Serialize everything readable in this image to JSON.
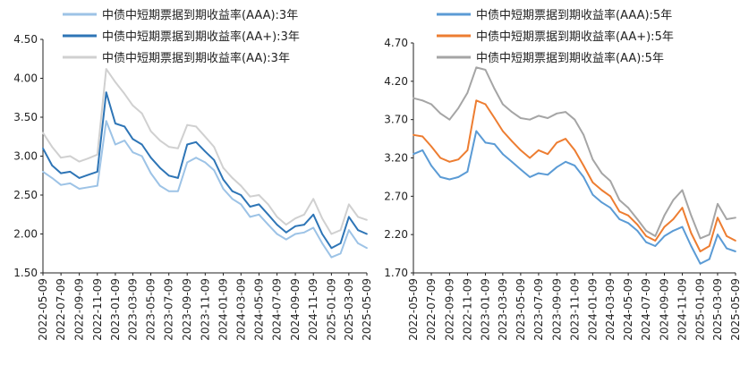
{
  "chart_data": [
    {
      "type": "line",
      "title": "",
      "xlabel": "",
      "ylabel": "",
      "ylim": [
        1.5,
        4.5
      ],
      "y_ticks": [
        "4.50",
        "4.00",
        "3.50",
        "3.00",
        "2.50",
        "2.00",
        "1.50"
      ],
      "x_ticks": [
        "2022-05-09",
        "2022-07-09",
        "2022-09-09",
        "2022-11-09",
        "2023-01-09",
        "2023-03-09",
        "2023-05-09",
        "2023-07-09",
        "2023-09-09",
        "2023-11-09",
        "2024-01-09",
        "2024-03-09",
        "2024-05-09",
        "2024-07-09",
        "2024-09-09",
        "2024-11-09",
        "2025-01-09",
        "2025-03-09",
        "2025-05-09"
      ],
      "grid": false,
      "legend_position": "top-left",
      "series": [
        {
          "name": "中债中短期票据到期收益率(AAA):3年",
          "color": "#9dc3e6",
          "x": [
            "2022-05-09",
            "2022-06-09",
            "2022-07-09",
            "2022-08-09",
            "2022-09-09",
            "2022-10-09",
            "2022-11-09",
            "2022-12-09",
            "2023-01-09",
            "2023-02-09",
            "2023-03-09",
            "2023-04-09",
            "2023-05-09",
            "2023-06-09",
            "2023-07-09",
            "2023-08-09",
            "2023-09-09",
            "2023-10-09",
            "2023-11-09",
            "2023-12-09",
            "2024-01-09",
            "2024-02-09",
            "2024-03-09",
            "2024-04-09",
            "2024-05-09",
            "2024-06-09",
            "2024-07-09",
            "2024-08-09",
            "2024-09-09",
            "2024-10-09",
            "2024-11-09",
            "2024-12-09",
            "2025-01-09",
            "2025-02-09",
            "2025-03-09",
            "2025-04-09",
            "2025-05-09"
          ],
          "values": [
            2.8,
            2.72,
            2.63,
            2.65,
            2.58,
            2.6,
            2.62,
            3.45,
            3.15,
            3.2,
            3.05,
            3.0,
            2.78,
            2.62,
            2.55,
            2.55,
            2.92,
            2.98,
            2.92,
            2.82,
            2.58,
            2.45,
            2.38,
            2.22,
            2.25,
            2.12,
            2.0,
            1.93,
            2.0,
            2.02,
            2.08,
            1.88,
            1.7,
            1.75,
            2.05,
            1.88,
            1.82
          ]
        },
        {
          "name": "中债中短期票据到期收益率(AA+):3年",
          "color": "#2e75b6",
          "x": [
            "2022-05-09",
            "2022-06-09",
            "2022-07-09",
            "2022-08-09",
            "2022-09-09",
            "2022-10-09",
            "2022-11-09",
            "2022-12-09",
            "2023-01-09",
            "2023-02-09",
            "2023-03-09",
            "2023-04-09",
            "2023-05-09",
            "2023-06-09",
            "2023-07-09",
            "2023-08-09",
            "2023-09-09",
            "2023-10-09",
            "2023-11-09",
            "2023-12-09",
            "2024-01-09",
            "2024-02-09",
            "2024-03-09",
            "2024-04-09",
            "2024-05-09",
            "2024-06-09",
            "2024-07-09",
            "2024-08-09",
            "2024-09-09",
            "2024-10-09",
            "2024-11-09",
            "2024-12-09",
            "2025-01-09",
            "2025-02-09",
            "2025-03-09",
            "2025-04-09",
            "2025-05-09"
          ],
          "values": [
            3.1,
            2.88,
            2.78,
            2.8,
            2.72,
            2.76,
            2.8,
            3.82,
            3.42,
            3.38,
            3.22,
            3.15,
            2.98,
            2.85,
            2.75,
            2.72,
            3.15,
            3.18,
            3.06,
            2.95,
            2.7,
            2.55,
            2.5,
            2.35,
            2.38,
            2.25,
            2.12,
            2.02,
            2.1,
            2.12,
            2.25,
            2.0,
            1.82,
            1.88,
            2.22,
            2.05,
            2.0
          ]
        },
        {
          "name": "中债中短期票据到期收益率(AA):3年",
          "color": "#d0d0d0",
          "x": [
            "2022-05-09",
            "2022-06-09",
            "2022-07-09",
            "2022-08-09",
            "2022-09-09",
            "2022-10-09",
            "2022-11-09",
            "2022-12-09",
            "2023-01-09",
            "2023-02-09",
            "2023-03-09",
            "2023-04-09",
            "2023-05-09",
            "2023-06-09",
            "2023-07-09",
            "2023-08-09",
            "2023-09-09",
            "2023-10-09",
            "2023-11-09",
            "2023-12-09",
            "2024-01-09",
            "2024-02-09",
            "2024-03-09",
            "2024-04-09",
            "2024-05-09",
            "2024-06-09",
            "2024-07-09",
            "2024-08-09",
            "2024-09-09",
            "2024-10-09",
            "2024-11-09",
            "2024-12-09",
            "2025-01-09",
            "2025-02-09",
            "2025-03-09",
            "2025-04-09",
            "2025-05-09"
          ],
          "values": [
            3.3,
            3.12,
            2.98,
            3.0,
            2.93,
            2.97,
            3.02,
            4.12,
            3.95,
            3.8,
            3.65,
            3.55,
            3.32,
            3.2,
            3.12,
            3.1,
            3.4,
            3.38,
            3.25,
            3.12,
            2.85,
            2.72,
            2.62,
            2.48,
            2.5,
            2.38,
            2.22,
            2.12,
            2.2,
            2.25,
            2.45,
            2.2,
            2.0,
            2.05,
            2.38,
            2.22,
            2.18
          ]
        }
      ]
    },
    {
      "type": "line",
      "title": "",
      "xlabel": "",
      "ylabel": "",
      "ylim": [
        1.7,
        4.7
      ],
      "y_ticks": [
        "4.70",
        "4.20",
        "3.70",
        "3.20",
        "2.70",
        "2.20",
        "1.70"
      ],
      "x_ticks": [
        "2022-05-09",
        "2022-07-09",
        "2022-09-09",
        "2022-11-09",
        "2023-01-09",
        "2023-03-09",
        "2023-05-09",
        "2023-07-09",
        "2023-09-09",
        "2023-11-09",
        "2024-01-09",
        "2024-03-09",
        "2024-05-09",
        "2024-07-09",
        "2024-09-09",
        "2024-11-09",
        "2025-01-09",
        "2025-03-09",
        "2025-05-09"
      ],
      "grid": false,
      "legend_position": "top-center",
      "series": [
        {
          "name": "中债中短期票据到期收益率(AAA):5年",
          "color": "#5b9bd5",
          "x": [
            "2022-05-09",
            "2022-06-09",
            "2022-07-09",
            "2022-08-09",
            "2022-09-09",
            "2022-10-09",
            "2022-11-09",
            "2022-12-09",
            "2023-01-09",
            "2023-02-09",
            "2023-03-09",
            "2023-04-09",
            "2023-05-09",
            "2023-06-09",
            "2023-07-09",
            "2023-08-09",
            "2023-09-09",
            "2023-10-09",
            "2023-11-09",
            "2023-12-09",
            "2024-01-09",
            "2024-02-09",
            "2024-03-09",
            "2024-04-09",
            "2024-05-09",
            "2024-06-09",
            "2024-07-09",
            "2024-08-09",
            "2024-09-09",
            "2024-10-09",
            "2024-11-09",
            "2024-12-09",
            "2025-01-09",
            "2025-02-09",
            "2025-03-09",
            "2025-04-09",
            "2025-05-09"
          ],
          "values": [
            3.25,
            3.3,
            3.1,
            2.95,
            2.92,
            2.95,
            3.02,
            3.55,
            3.4,
            3.38,
            3.25,
            3.15,
            3.05,
            2.95,
            3.0,
            2.98,
            3.08,
            3.15,
            3.1,
            2.95,
            2.72,
            2.62,
            2.55,
            2.4,
            2.35,
            2.25,
            2.1,
            2.05,
            2.18,
            2.25,
            2.3,
            2.05,
            1.82,
            1.88,
            2.2,
            2.02,
            1.98
          ]
        },
        {
          "name": "中债中短期票据到期收益率(AA+):5年",
          "color": "#ed7d31",
          "x": [
            "2022-05-09",
            "2022-06-09",
            "2022-07-09",
            "2022-08-09",
            "2022-09-09",
            "2022-10-09",
            "2022-11-09",
            "2022-12-09",
            "2023-01-09",
            "2023-02-09",
            "2023-03-09",
            "2023-04-09",
            "2023-05-09",
            "2023-06-09",
            "2023-07-09",
            "2023-08-09",
            "2023-09-09",
            "2023-10-09",
            "2023-11-09",
            "2023-12-09",
            "2024-01-09",
            "2024-02-09",
            "2024-03-09",
            "2024-04-09",
            "2024-05-09",
            "2024-06-09",
            "2024-07-09",
            "2024-08-09",
            "2024-09-09",
            "2024-10-09",
            "2024-11-09",
            "2024-12-09",
            "2025-01-09",
            "2025-02-09",
            "2025-03-09",
            "2025-04-09",
            "2025-05-09"
          ],
          "values": [
            3.5,
            3.48,
            3.35,
            3.2,
            3.15,
            3.18,
            3.3,
            3.95,
            3.9,
            3.72,
            3.55,
            3.42,
            3.3,
            3.2,
            3.3,
            3.25,
            3.4,
            3.45,
            3.3,
            3.1,
            2.88,
            2.78,
            2.7,
            2.5,
            2.45,
            2.33,
            2.18,
            2.12,
            2.3,
            2.4,
            2.55,
            2.22,
            1.98,
            2.05,
            2.42,
            2.18,
            2.12
          ]
        },
        {
          "name": "中债中短期票据到期收益率(AA):5年",
          "color": "#a5a5a5",
          "x": [
            "2022-05-09",
            "2022-06-09",
            "2022-07-09",
            "2022-08-09",
            "2022-09-09",
            "2022-10-09",
            "2022-11-09",
            "2022-12-09",
            "2023-01-09",
            "2023-02-09",
            "2023-03-09",
            "2023-04-09",
            "2023-05-09",
            "2023-06-09",
            "2023-07-09",
            "2023-08-09",
            "2023-09-09",
            "2023-10-09",
            "2023-11-09",
            "2023-12-09",
            "2024-01-09",
            "2024-02-09",
            "2024-03-09",
            "2024-04-09",
            "2024-05-09",
            "2024-06-09",
            "2024-07-09",
            "2024-08-09",
            "2024-09-09",
            "2024-10-09",
            "2024-11-09",
            "2024-12-09",
            "2025-01-09",
            "2025-02-09",
            "2025-03-09",
            "2025-04-09",
            "2025-05-09"
          ],
          "values": [
            3.98,
            3.95,
            3.9,
            3.78,
            3.7,
            3.85,
            4.05,
            4.38,
            4.35,
            4.1,
            3.9,
            3.8,
            3.72,
            3.7,
            3.75,
            3.72,
            3.78,
            3.8,
            3.7,
            3.5,
            3.18,
            3.0,
            2.9,
            2.65,
            2.55,
            2.4,
            2.25,
            2.18,
            2.45,
            2.65,
            2.78,
            2.45,
            2.15,
            2.2,
            2.6,
            2.4,
            2.42
          ]
        }
      ]
    }
  ]
}
